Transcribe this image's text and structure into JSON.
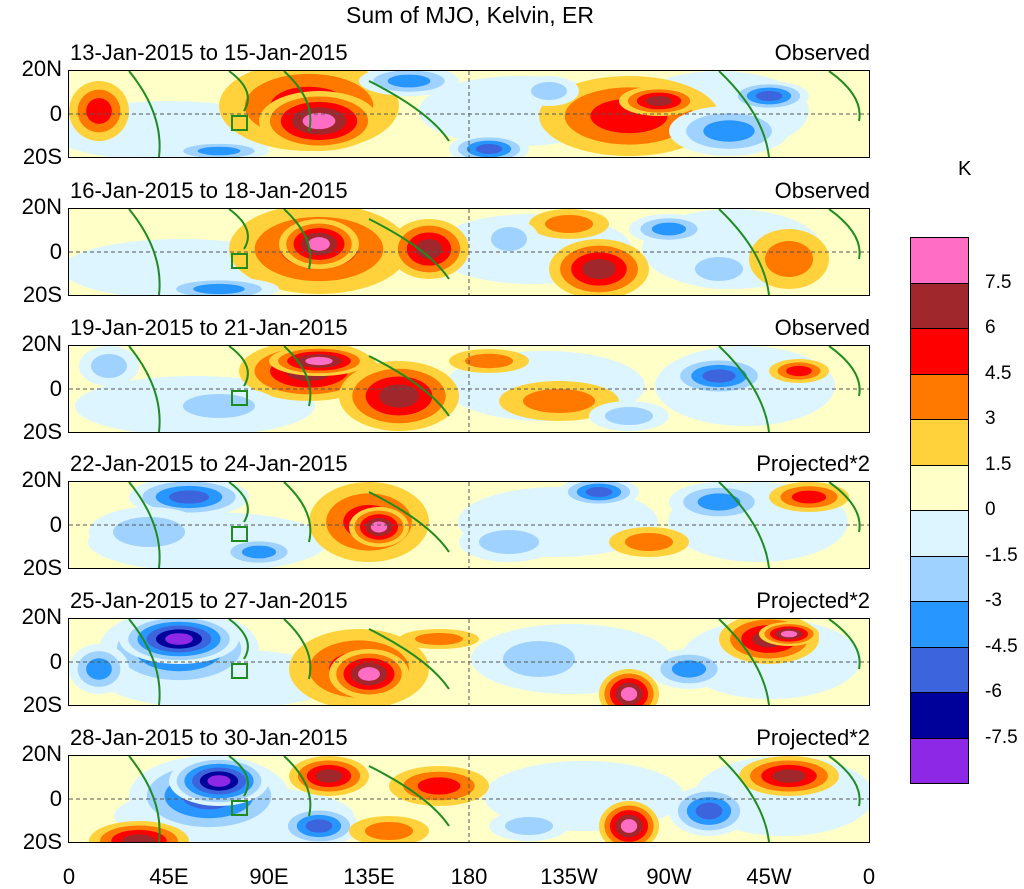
{
  "title": "Sum of MJO, Kelvin, ER",
  "unit": "K",
  "panels": [
    {
      "dates": "13-Jan-2015 to 15-Jan-2015",
      "label": "Observed"
    },
    {
      "dates": "16-Jan-2015 to 18-Jan-2015",
      "label": "Observed"
    },
    {
      "dates": "19-Jan-2015 to 21-Jan-2015",
      "label": "Observed"
    },
    {
      "dates": "22-Jan-2015 to 24-Jan-2015",
      "label": "Projected*2"
    },
    {
      "dates": "25-Jan-2015 to 27-Jan-2015",
      "label": "Projected*2"
    },
    {
      "dates": "28-Jan-2015 to 30-Jan-2015",
      "label": "Projected*2"
    }
  ],
  "y_ticks": [
    "20N",
    "0",
    "20S"
  ],
  "x_ticks": [
    "0",
    "45E",
    "90E",
    "135E",
    "180",
    "135W",
    "90W",
    "45W",
    "0"
  ],
  "colorbar": {
    "labels": [
      "7.5",
      "6",
      "4.5",
      "3",
      "1.5",
      "0",
      "-1.5",
      "-3",
      "-4.5",
      "-6",
      "-7.5"
    ],
    "colors": [
      "#ff6ec4",
      "#a0282d",
      "#ff0000",
      "#ff7800",
      "#ffd23c",
      "#ffffc8",
      "#dcf5ff",
      "#a0d2ff",
      "#2896ff",
      "#3c64dc",
      "#00009b",
      "#8c28e6"
    ]
  }
}
